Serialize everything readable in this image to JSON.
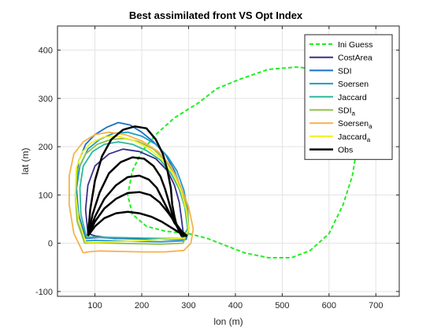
{
  "chart_data": {
    "type": "line",
    "title": "Best assimilated front VS Opt Index",
    "xlabel": "lon (m)",
    "ylabel": "lat (m)",
    "xlim": [
      20,
      750
    ],
    "ylim": [
      -110,
      450
    ],
    "xticks": [
      100,
      200,
      300,
      400,
      500,
      600,
      700
    ],
    "yticks": [
      -100,
      0,
      100,
      200,
      300,
      400
    ],
    "grid": true,
    "legend_position": "top-right",
    "colors": {
      "ini_guess": "#22ee22",
      "costarea": "#3a2e8c",
      "sdi": "#1a6fc9",
      "soersen": "#1f9bc7",
      "jaccard": "#2bb89a",
      "sdi_a": "#8ec04a",
      "soersen_a": "#f5b24a",
      "jaccard_a": "#f2f222",
      "obs": "#000000"
    },
    "series": [
      {
        "name": "Ini Guess",
        "key": "ini_guess",
        "style": "dashed",
        "x": [
          300,
          340,
          380,
          420,
          470,
          520,
          560,
          600,
          630,
          650,
          660,
          665,
          660,
          650,
          620,
          580,
          530,
          470,
          410,
          360,
          320,
          270,
          230,
          200,
          180,
          170,
          180,
          210,
          250,
          300
        ],
        "y": [
          20,
          10,
          -5,
          -20,
          -30,
          -30,
          -15,
          20,
          80,
          140,
          200,
          250,
          300,
          330,
          350,
          360,
          365,
          360,
          340,
          320,
          290,
          260,
          225,
          190,
          150,
          100,
          60,
          35,
          25,
          20
        ]
      },
      {
        "name": "CostArea",
        "key": "costarea",
        "style": "solid",
        "x": [
          85,
          80,
          85,
          100,
          130,
          160,
          195,
          230,
          255,
          270,
          280,
          285,
          290,
          280,
          250,
          200,
          140,
          100,
          85
        ],
        "y": [
          20,
          70,
          120,
          160,
          185,
          195,
          190,
          175,
          150,
          120,
          85,
          50,
          10,
          8,
          8,
          9,
          10,
          15,
          20
        ]
      },
      {
        "name": "SDI",
        "key": "sdi",
        "style": "solid",
        "x": [
          80,
          65,
          60,
          65,
          80,
          100,
          125,
          150,
          175,
          200,
          225,
          250,
          270,
          285,
          295,
          300,
          295,
          250,
          200,
          150,
          110,
          80
        ],
        "y": [
          10,
          60,
          120,
          170,
          205,
          225,
          240,
          250,
          245,
          230,
          210,
          185,
          150,
          110,
          70,
          30,
          8,
          8,
          9,
          10,
          12,
          10
        ]
      },
      {
        "name": "Soersen",
        "key": "soersen",
        "style": "solid",
        "x": [
          78,
          65,
          60,
          68,
          85,
          110,
          140,
          170,
          200,
          230,
          255,
          275,
          290,
          298,
          300,
          290,
          240,
          190,
          140,
          100,
          78
        ],
        "y": [
          5,
          50,
          110,
          160,
          195,
          215,
          228,
          230,
          222,
          205,
          180,
          150,
          110,
          70,
          30,
          5,
          3,
          4,
          5,
          6,
          5
        ]
      },
      {
        "name": "Jaccard",
        "key": "jaccard",
        "style": "solid",
        "x": [
          82,
          70,
          68,
          75,
          95,
          120,
          150,
          180,
          210,
          240,
          262,
          280,
          292,
          298,
          285,
          240,
          190,
          140,
          100,
          82
        ],
        "y": [
          12,
          60,
          115,
          160,
          190,
          205,
          210,
          205,
          192,
          172,
          145,
          112,
          75,
          30,
          10,
          10,
          11,
          12,
          13,
          12
        ]
      },
      {
        "name": "SDI_a",
        "key": "sdi_a",
        "style": "solid",
        "x": [
          78,
          62,
          58,
          62,
          80,
          105,
          135,
          165,
          195,
          225,
          250,
          272,
          288,
          298,
          300,
          288,
          240,
          190,
          140,
          100,
          78
        ],
        "y": [
          0,
          45,
          100,
          150,
          185,
          205,
          215,
          217,
          210,
          195,
          172,
          142,
          105,
          65,
          25,
          0,
          -2,
          -1,
          0,
          1,
          0
        ]
      },
      {
        "name": "Soersen_a",
        "key": "soersen_a",
        "style": "solid",
        "x": [
          75,
          55,
          45,
          45,
          55,
          75,
          100,
          130,
          165,
          200,
          235,
          262,
          282,
          300,
          310,
          305,
          290,
          250,
          200,
          150,
          110,
          85,
          75
        ],
        "y": [
          -20,
          20,
          80,
          140,
          185,
          210,
          225,
          230,
          225,
          212,
          190,
          160,
          120,
          75,
          30,
          0,
          -15,
          -18,
          -18,
          -17,
          -16,
          -18,
          -20
        ]
      },
      {
        "name": "Jaccard_a",
        "key": "jaccard_a",
        "style": "solid",
        "x": [
          80,
          65,
          58,
          60,
          72,
          92,
          118,
          148,
          180,
          212,
          242,
          266,
          284,
          295,
          300,
          290,
          240,
          190,
          140,
          100,
          80
        ],
        "y": [
          2,
          50,
          105,
          155,
          188,
          208,
          220,
          222,
          214,
          198,
          175,
          145,
          108,
          68,
          28,
          10,
          8,
          5,
          3,
          2,
          2
        ]
      },
      {
        "name": "Obs",
        "key": "obs",
        "style": "solid",
        "x": [
          85,
          90,
          100,
          115,
          135,
          160,
          185,
          210,
          230,
          245,
          255,
          262,
          265,
          270,
          275,
          285,
          297
        ],
        "y": [
          15,
          70,
          130,
          180,
          215,
          235,
          242,
          238,
          215,
          185,
          150,
          115,
          80,
          55,
          35,
          15,
          15
        ]
      },
      {
        "name": "",
        "key": "obs",
        "style": "solid",
        "x": [
          85,
          95,
          110,
          130,
          155,
          180,
          205,
          225,
          240,
          250,
          258,
          265,
          275,
          287,
          297
        ],
        "y": [
          15,
          60,
          105,
          145,
          168,
          178,
          175,
          160,
          138,
          112,
          85,
          60,
          38,
          20,
          15
        ]
      },
      {
        "name": "",
        "key": "obs",
        "style": "solid",
        "x": [
          85,
          100,
          120,
          145,
          170,
          195,
          215,
          232,
          245,
          258,
          270,
          285,
          297
        ],
        "y": [
          15,
          55,
          92,
          120,
          137,
          140,
          132,
          115,
          90,
          65,
          42,
          22,
          15
        ]
      },
      {
        "name": "",
        "key": "obs",
        "style": "solid",
        "x": [
          85,
          100,
          120,
          145,
          170,
          195,
          218,
          238,
          255,
          270,
          285,
          297
        ],
        "y": [
          15,
          45,
          72,
          92,
          104,
          106,
          100,
          85,
          65,
          45,
          25,
          15
        ]
      },
      {
        "name": "",
        "key": "obs",
        "style": "solid",
        "x": [
          85,
          100,
          120,
          145,
          170,
          195,
          220,
          242,
          262,
          280,
          297
        ],
        "y": [
          15,
          35,
          52,
          62,
          65,
          62,
          55,
          45,
          33,
          22,
          15
        ]
      }
    ]
  }
}
